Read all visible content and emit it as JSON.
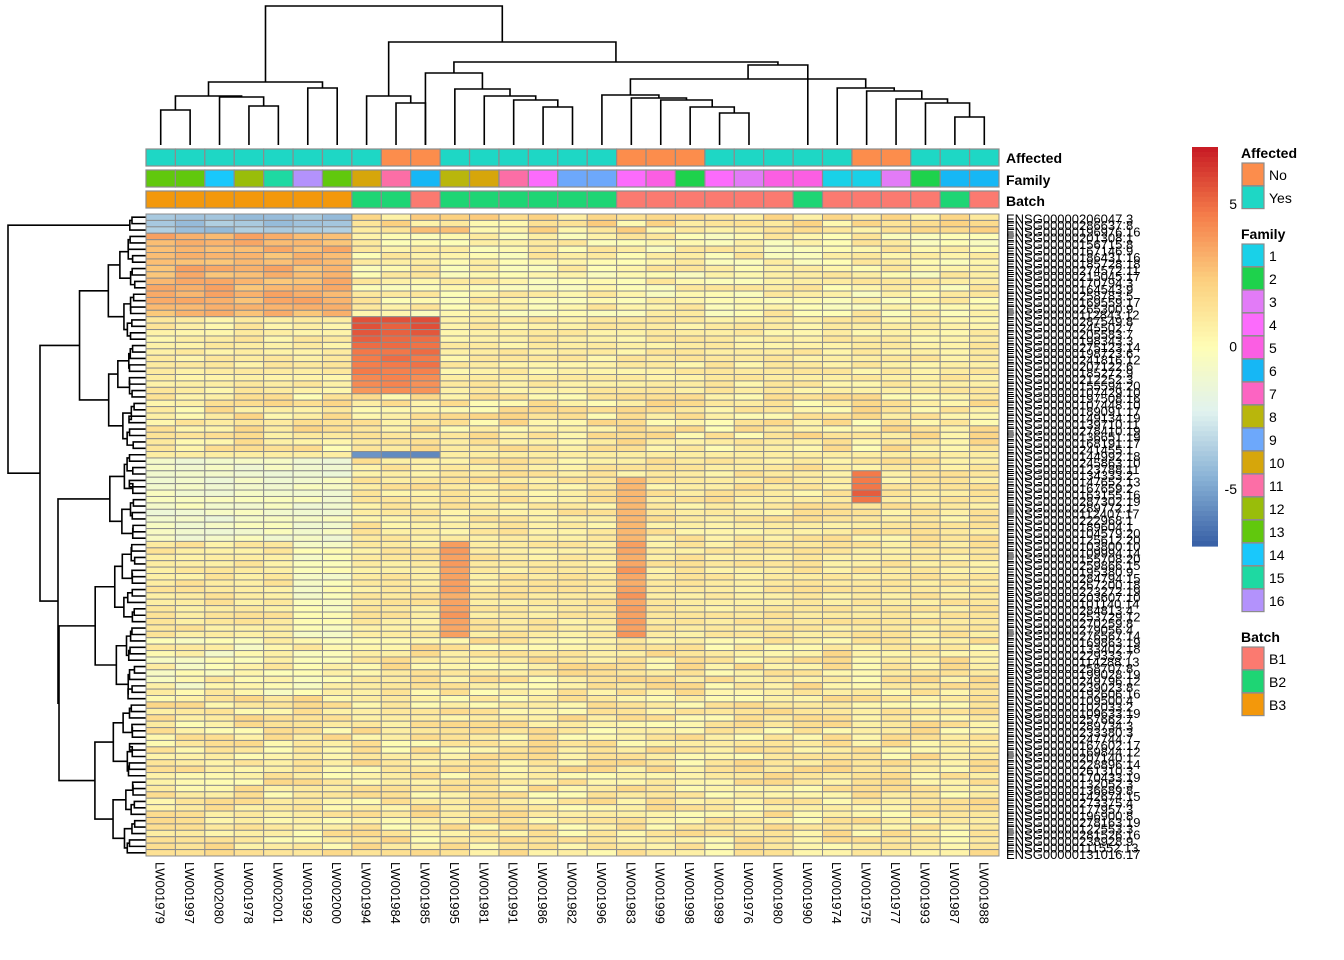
{
  "chart_data": {
    "type": "heatmap",
    "title": "",
    "columns": [
      "LW001979",
      "LW001997",
      "LW002080",
      "LW001978",
      "LW002001",
      "LW001992",
      "LW002000",
      "LW001994",
      "LW001984",
      "LW001985",
      "LW001995",
      "LW001981",
      "LW001991",
      "LW001986",
      "LW001982",
      "LW001996",
      "LW001983",
      "LW001999",
      "LW001998",
      "LW001989",
      "LW001976",
      "LW001980",
      "LW001990",
      "LW001974",
      "LW001975",
      "LW001977",
      "LW001993",
      "LW001987",
      "LW001988"
    ],
    "row_labels_first": "ENSG00000206047.3",
    "row_labels_last": "ENSG00000131016.17",
    "row_label_prefix": "ENSG00000",
    "n_rows": 100,
    "color_scale": {
      "min": -7,
      "max": 7,
      "ticks": [
        5,
        0,
        -5
      ],
      "colors": [
        "#3a62a7",
        "#89b2d6",
        "#e0f2ef",
        "#fefdb5",
        "#fcd07f",
        "#f57d4a",
        "#c91d25"
      ]
    },
    "annotations": {
      "Affected": [
        "Yes",
        "Yes",
        "Yes",
        "Yes",
        "Yes",
        "Yes",
        "Yes",
        "Yes",
        "No",
        "No",
        "Yes",
        "Yes",
        "Yes",
        "Yes",
        "Yes",
        "Yes",
        "No",
        "No",
        "No",
        "Yes",
        "Yes",
        "Yes",
        "Yes",
        "Yes",
        "No",
        "No",
        "Yes",
        "Yes",
        "Yes"
      ],
      "Family": [
        "13",
        "13",
        "14",
        "12",
        "15",
        "16",
        "13",
        "10",
        "11",
        "6",
        "8",
        "10",
        "11",
        "4",
        "9",
        "9",
        "4",
        "5",
        "2",
        "4",
        "3",
        "5",
        "5",
        "1",
        "1",
        "3",
        "2",
        "6",
        "6"
      ],
      "Batch": [
        "B3",
        "B3",
        "B3",
        "B3",
        "B3",
        "B3",
        "B3",
        "B2",
        "B2",
        "B1",
        "B2",
        "B2",
        "B2",
        "B2",
        "B2",
        "B2",
        "B1",
        "B1",
        "B1",
        "B1",
        "B1",
        "B1",
        "B2",
        "B1",
        "B1",
        "B1",
        "B1",
        "B2",
        "B1"
      ]
    },
    "annotation_order": [
      "Affected",
      "Family",
      "Batch"
    ],
    "legend": {
      "Affected": {
        "title": "Affected",
        "items": [
          {
            "label": "No",
            "color": "#fc8d4c"
          },
          {
            "label": "Yes",
            "color": "#1ed7c5"
          }
        ]
      },
      "Family": {
        "title": "Family",
        "items": [
          {
            "label": "1",
            "color": "#19d1e8"
          },
          {
            "label": "2",
            "color": "#1ed24c"
          },
          {
            "label": "3",
            "color": "#e27bf7"
          },
          {
            "label": "4",
            "color": "#fc6bfc"
          },
          {
            "label": "5",
            "color": "#fb5ee3"
          },
          {
            "label": "6",
            "color": "#16b7f5"
          },
          {
            "label": "7",
            "color": "#fc64c2"
          },
          {
            "label": "8",
            "color": "#b9b60c"
          },
          {
            "label": "9",
            "color": "#6da8fb"
          },
          {
            "label": "10",
            "color": "#d6a60b"
          },
          {
            "label": "11",
            "color": "#fc6ea6"
          },
          {
            "label": "12",
            "color": "#99bd0a"
          },
          {
            "label": "13",
            "color": "#61c80d"
          },
          {
            "label": "14",
            "color": "#19c8fc"
          },
          {
            "label": "15",
            "color": "#1ed9a2"
          },
          {
            "label": "16",
            "color": "#b392fc"
          }
        ]
      },
      "Batch": {
        "title": "Batch",
        "items": [
          {
            "label": "B1",
            "color": "#fb7a70"
          },
          {
            "label": "B2",
            "color": "#1ed574"
          },
          {
            "label": "B3",
            "color": "#f3980b"
          }
        ]
      }
    },
    "values_description": "Approximate z-scored expression; rows clustered (left dendrogram), columns clustered (top dendrogram)",
    "row_groups": [
      {
        "rows": [
          0,
          2
        ],
        "profile": {
          "cols_0_6": -4.5,
          "cols_7_28": 1.5
        }
      },
      {
        "rows": [
          3,
          15
        ],
        "profile": {
          "cols_0_6": 2.8,
          "cols_7_28": 0.6
        }
      },
      {
        "rows": [
          16,
          27
        ],
        "profile": {
          "cols_7_9": 5.8,
          "other": 0.8
        }
      },
      {
        "rows": [
          28,
          36
        ],
        "profile": {
          "mixed": 1.2
        }
      },
      {
        "rows": [
          37,
          37
        ],
        "profile": {
          "cols_7_9": -6.5,
          "other": 0.8
        }
      },
      {
        "rows": [
          38,
          50
        ],
        "profile": {
          "cols_0_6": -1.5,
          "col_16": 2.5,
          "col_24": 4.0,
          "other": 1.0
        }
      },
      {
        "rows": [
          51,
          65
        ],
        "profile": {
          "col_10": 3.5,
          "col_16": 3.5,
          "cols_5_6": -1.0,
          "other": 1.0
        }
      },
      {
        "rows": [
          66,
          99
        ],
        "profile": {
          "mixed": 1.0
        }
      }
    ]
  }
}
